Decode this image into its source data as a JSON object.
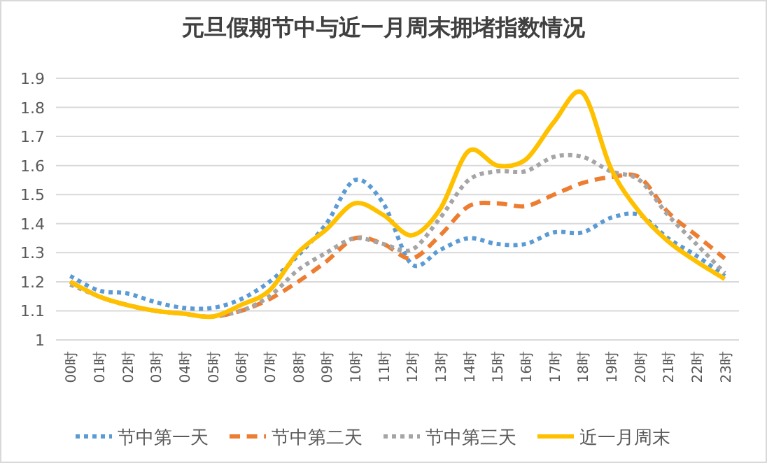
{
  "chart_data": {
    "type": "line",
    "title": "元旦假期节中与近一月周末拥堵指数情况",
    "categories": [
      "00时",
      "01时",
      "02时",
      "03时",
      "04时",
      "05时",
      "06时",
      "07时",
      "08时",
      "09时",
      "10时",
      "11时",
      "12时",
      "13时",
      "14时",
      "15时",
      "16时",
      "17时",
      "18时",
      "19时",
      "20时",
      "21时",
      "22时",
      "23时"
    ],
    "series": [
      {
        "name": "节中第一天",
        "color": "#5b9bd5",
        "line_style": "dotted",
        "values": [
          1.22,
          1.17,
          1.16,
          1.13,
          1.11,
          1.11,
          1.14,
          1.2,
          1.29,
          1.4,
          1.55,
          1.47,
          1.26,
          1.31,
          1.35,
          1.33,
          1.33,
          1.37,
          1.37,
          1.42,
          1.43,
          1.35,
          1.29,
          1.22
        ]
      },
      {
        "name": "节中第二天",
        "color": "#ed7d31",
        "line_style": "dashed",
        "values": [
          1.2,
          1.15,
          1.12,
          1.1,
          1.09,
          1.08,
          1.1,
          1.14,
          1.2,
          1.27,
          1.35,
          1.33,
          1.28,
          1.36,
          1.46,
          1.47,
          1.46,
          1.5,
          1.54,
          1.56,
          1.56,
          1.44,
          1.36,
          1.28
        ]
      },
      {
        "name": "节中第三天",
        "color": "#a5a5a5",
        "line_style": "dotted",
        "values": [
          1.19,
          1.15,
          null,
          null,
          null,
          1.08,
          1.1,
          1.15,
          1.24,
          1.3,
          1.35,
          1.33,
          1.31,
          1.42,
          1.55,
          1.58,
          1.58,
          1.63,
          1.63,
          1.58,
          1.55,
          1.43,
          1.33,
          1.23
        ]
      },
      {
        "name": "近一月周末",
        "color": "#ffc000",
        "line_style": "solid",
        "values": [
          1.2,
          1.15,
          1.12,
          1.1,
          1.09,
          1.08,
          1.12,
          1.17,
          1.3,
          1.38,
          1.47,
          1.43,
          1.36,
          1.45,
          1.65,
          1.6,
          1.62,
          1.75,
          1.85,
          1.59,
          1.44,
          1.34,
          1.27,
          1.21
        ]
      }
    ],
    "ylim": [
      1,
      1.9
    ],
    "yticks": [
      1,
      1.1,
      1.2,
      1.3,
      1.4,
      1.5,
      1.6,
      1.7,
      1.8,
      1.9
    ],
    "grid": "y",
    "legend": "bottom",
    "marker": "none"
  }
}
